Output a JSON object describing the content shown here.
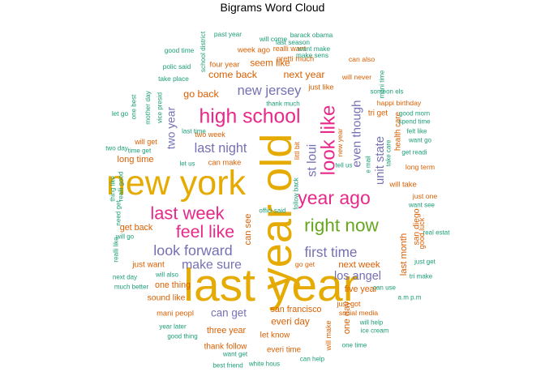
{
  "chart_data": {
    "type": "wordcloud",
    "title": "Bigrams Word Cloud",
    "colors": {
      "top": "#E6AB02",
      "high": "#E7298A",
      "mid": "#7570B3",
      "low": "#D95F02",
      "min": "#1B9E77",
      "green": "#66A61E"
    },
    "words": [
      {
        "text": "last year",
        "freq": 100,
        "color": "#E6AB02",
        "rot": 0
      },
      {
        "text": "year old",
        "freq": 98,
        "color": "#E6AB02",
        "rot": -90
      },
      {
        "text": "new york",
        "freq": 90,
        "color": "#E6AB02",
        "rot": 0
      },
      {
        "text": "high school",
        "freq": 60,
        "color": "#E7298A",
        "rot": 0
      },
      {
        "text": "look like",
        "freq": 58,
        "color": "#E7298A",
        "rot": -90
      },
      {
        "text": "year ago",
        "freq": 55,
        "color": "#E7298A",
        "rot": 0
      },
      {
        "text": "right now",
        "freq": 54,
        "color": "#66A61E",
        "rot": 0
      },
      {
        "text": "last week",
        "freq": 52,
        "color": "#E7298A",
        "rot": 0
      },
      {
        "text": "feel like",
        "freq": 50,
        "color": "#E7298A",
        "rot": 0
      },
      {
        "text": "look forward",
        "freq": 40,
        "color": "#7570B3",
        "rot": 0
      },
      {
        "text": "first time",
        "freq": 38,
        "color": "#7570B3",
        "rot": 0
      },
      {
        "text": "new jersey",
        "freq": 36,
        "color": "#7570B3",
        "rot": 0
      },
      {
        "text": "last night",
        "freq": 35,
        "color": "#7570B3",
        "rot": 0
      },
      {
        "text": "make sure",
        "freq": 34,
        "color": "#7570B3",
        "rot": 0
      },
      {
        "text": "st loui",
        "freq": 33,
        "color": "#7570B3",
        "rot": -90
      },
      {
        "text": "even though",
        "freq": 32,
        "color": "#7570B3",
        "rot": -90
      },
      {
        "text": "unit state",
        "freq": 31,
        "color": "#7570B3",
        "rot": -90
      },
      {
        "text": "los angel",
        "freq": 30,
        "color": "#7570B3",
        "rot": 0
      },
      {
        "text": "two year",
        "freq": 28,
        "color": "#7570B3",
        "rot": -90
      },
      {
        "text": "can get",
        "freq": 27,
        "color": "#7570B3",
        "rot": 0
      },
      {
        "text": "come back",
        "freq": 24,
        "color": "#D95F02",
        "rot": 0
      },
      {
        "text": "next year",
        "freq": 24,
        "color": "#D95F02",
        "rot": 0
      },
      {
        "text": "go back",
        "freq": 24,
        "color": "#D95F02",
        "rot": 0
      },
      {
        "text": "seem like",
        "freq": 22,
        "color": "#D95F02",
        "rot": 0
      },
      {
        "text": "everi day",
        "freq": 22,
        "color": "#D95F02",
        "rot": 0
      },
      {
        "text": "next week",
        "freq": 21,
        "color": "#D95F02",
        "rot": 0
      },
      {
        "text": "last month",
        "freq": 21,
        "color": "#D95F02",
        "rot": -90
      },
      {
        "text": "one day",
        "freq": 21,
        "color": "#D95F02",
        "rot": -90
      },
      {
        "text": "can see",
        "freq": 20,
        "color": "#D95F02",
        "rot": -90
      },
      {
        "text": "long time",
        "freq": 20,
        "color": "#D95F02",
        "rot": 0
      },
      {
        "text": "get back",
        "freq": 19,
        "color": "#D95F02",
        "rot": 0
      },
      {
        "text": "san francisco",
        "freq": 19,
        "color": "#D95F02",
        "rot": 0
      },
      {
        "text": "three year",
        "freq": 19,
        "color": "#D95F02",
        "rot": 0
      },
      {
        "text": "five year",
        "freq": 19,
        "color": "#D95F02",
        "rot": 0
      },
      {
        "text": "one thing",
        "freq": 19,
        "color": "#D95F02",
        "rot": 0
      },
      {
        "text": "sound like",
        "freq": 18,
        "color": "#D95F02",
        "rot": 0
      },
      {
        "text": "san diego",
        "freq": 18,
        "color": "#D95F02",
        "rot": -90
      },
      {
        "text": "just want",
        "freq": 17,
        "color": "#D95F02",
        "rot": 0
      },
      {
        "text": "thank follow",
        "freq": 17,
        "color": "#D95F02",
        "rot": 0
      },
      {
        "text": "let know",
        "freq": 17,
        "color": "#D95F02",
        "rot": 0
      },
      {
        "text": "everi time",
        "freq": 16,
        "color": "#D95F02",
        "rot": 0
      },
      {
        "text": "health care",
        "freq": 16,
        "color": "#D95F02",
        "rot": -90
      },
      {
        "text": "tri get",
        "freq": 16,
        "color": "#D95F02",
        "rot": 0
      },
      {
        "text": "mani peopl",
        "freq": 15,
        "color": "#D95F02",
        "rot": 0
      },
      {
        "text": "can make",
        "freq": 15,
        "color": "#D95F02",
        "rot": 0
      },
      {
        "text": "will take",
        "freq": 15,
        "color": "#D95F02",
        "rot": 0
      },
      {
        "text": "four year",
        "freq": 15,
        "color": "#D95F02",
        "rot": 0
      },
      {
        "text": "pretti much",
        "freq": 15,
        "color": "#D95F02",
        "rot": 0
      },
      {
        "text": "week ago",
        "freq": 15,
        "color": "#D95F02",
        "rot": 0
      },
      {
        "text": "just like",
        "freq": 15,
        "color": "#D95F02",
        "rot": 0
      },
      {
        "text": "will get",
        "freq": 14,
        "color": "#D95F02",
        "rot": 0
      },
      {
        "text": "two week",
        "freq": 14,
        "color": "#D95F02",
        "rot": 0
      },
      {
        "text": "just got",
        "freq": 14,
        "color": "#D95F02",
        "rot": 0
      },
      {
        "text": "will make",
        "freq": 14,
        "color": "#D95F02",
        "rot": -90
      },
      {
        "text": "realli want",
        "freq": 14,
        "color": "#D95F02",
        "rot": 0
      },
      {
        "text": "good luck",
        "freq": 14,
        "color": "#D95F02",
        "rot": -90
      },
      {
        "text": "long term",
        "freq": 13,
        "color": "#D95F02",
        "rot": 0
      },
      {
        "text": "just one",
        "freq": 13,
        "color": "#D95F02",
        "rot": 0
      },
      {
        "text": "can also",
        "freq": 13,
        "color": "#D95F02",
        "rot": 0
      },
      {
        "text": "will never",
        "freq": 13,
        "color": "#D95F02",
        "rot": 0
      },
      {
        "text": "new year",
        "freq": 13,
        "color": "#D95F02",
        "rot": -90
      },
      {
        "text": "littl bit",
        "freq": 13,
        "color": "#D95F02",
        "rot": -90
      },
      {
        "text": "happi birthday",
        "freq": 13,
        "color": "#D95F02",
        "rot": 0
      },
      {
        "text": "go get",
        "freq": 13,
        "color": "#D95F02",
        "rot": 0
      },
      {
        "text": "social media",
        "freq": 13,
        "color": "#D95F02",
        "rot": 0
      },
      {
        "text": "mother day",
        "freq": 12,
        "color": "#1B9E77",
        "rot": -90
      },
      {
        "text": "school district",
        "freq": 12,
        "color": "#1B9E77",
        "rot": -90
      },
      {
        "text": "past year",
        "freq": 12,
        "color": "#1B9E77",
        "rot": 0
      },
      {
        "text": "will come",
        "freq": 12,
        "color": "#1B9E77",
        "rot": 0
      },
      {
        "text": "barack obama",
        "freq": 12,
        "color": "#1B9E77",
        "rot": 0
      },
      {
        "text": "last season",
        "freq": 12,
        "color": "#1B9E77",
        "rot": 0
      },
      {
        "text": "want make",
        "freq": 12,
        "color": "#1B9E77",
        "rot": 0
      },
      {
        "text": "make sens",
        "freq": 12,
        "color": "#1B9E77",
        "rot": 0
      },
      {
        "text": "good time",
        "freq": 12,
        "color": "#1B9E77",
        "rot": 0
      },
      {
        "text": "polic said",
        "freq": 12,
        "color": "#1B9E77",
        "rot": 0
      },
      {
        "text": "take place",
        "freq": 12,
        "color": "#1B9E77",
        "rot": 0
      },
      {
        "text": "let go",
        "freq": 12,
        "color": "#1B9E77",
        "rot": 0
      },
      {
        "text": "one best",
        "freq": 11,
        "color": "#1B9E77",
        "rot": -90
      },
      {
        "text": "vice presid",
        "freq": 11,
        "color": "#1B9E77",
        "rot": -90
      },
      {
        "text": "mani time",
        "freq": 11,
        "color": "#1B9E77",
        "rot": -90
      },
      {
        "text": "someon els",
        "freq": 11,
        "color": "#1B9E77",
        "rot": 0
      },
      {
        "text": "good morn",
        "freq": 11,
        "color": "#1B9E77",
        "rot": 0
      },
      {
        "text": "spend time",
        "freq": 11,
        "color": "#1B9E77",
        "rot": 0
      },
      {
        "text": "felt like",
        "freq": 11,
        "color": "#1B9E77",
        "rot": 0
      },
      {
        "text": "want go",
        "freq": 11,
        "color": "#1B9E77",
        "rot": 0
      },
      {
        "text": "get readi",
        "freq": 11,
        "color": "#1B9E77",
        "rot": 0
      },
      {
        "text": "thank much",
        "freq": 11,
        "color": "#1B9E77",
        "rot": 0
      },
      {
        "text": "last time",
        "freq": 11,
        "color": "#1B9E77",
        "rot": 0
      },
      {
        "text": "two day",
        "freq": 11,
        "color": "#1B9E77",
        "rot": 0
      },
      {
        "text": "time get",
        "freq": 11,
        "color": "#1B9E77",
        "rot": 0
      },
      {
        "text": "let us",
        "freq": 11,
        "color": "#1B9E77",
        "rot": 0
      },
      {
        "text": "tell us",
        "freq": 11,
        "color": "#1B9E77",
        "rot": 0
      },
      {
        "text": "e mail",
        "freq": 11,
        "color": "#1B9E77",
        "rot": -90
      },
      {
        "text": "take care",
        "freq": 11,
        "color": "#1B9E77",
        "rot": -90
      },
      {
        "text": "thing like",
        "freq": 11,
        "color": "#1B9E77",
        "rot": -90
      },
      {
        "text": "realli good",
        "freq": 11,
        "color": "#1B9E77",
        "rot": -90
      },
      {
        "text": "follow back",
        "freq": 11,
        "color": "#1B9E77",
        "rot": -90
      },
      {
        "text": "need get",
        "freq": 11,
        "color": "#1B9E77",
        "rot": -90
      },
      {
        "text": "will go",
        "freq": 11,
        "color": "#1B9E77",
        "rot": 0
      },
      {
        "text": "want see",
        "freq": 11,
        "color": "#1B9E77",
        "rot": 0
      },
      {
        "text": "real estat",
        "freq": 11,
        "color": "#1B9E77",
        "rot": 0
      },
      {
        "text": "realli like",
        "freq": 11,
        "color": "#1B9E77",
        "rot": -90
      },
      {
        "text": "just get",
        "freq": 11,
        "color": "#1B9E77",
        "rot": 0
      },
      {
        "text": "will also",
        "freq": 11,
        "color": "#1B9E77",
        "rot": 0
      },
      {
        "text": "next day",
        "freq": 11,
        "color": "#1B9E77",
        "rot": 0
      },
      {
        "text": "much better",
        "freq": 11,
        "color": "#1B9E77",
        "rot": 0
      },
      {
        "text": "tri make",
        "freq": 11,
        "color": "#1B9E77",
        "rot": 0
      },
      {
        "text": "can use",
        "freq": 11,
        "color": "#1B9E77",
        "rot": 0
      },
      {
        "text": "a.m p.m",
        "freq": 11,
        "color": "#1B9E77",
        "rot": 0
      },
      {
        "text": "will help",
        "freq": 11,
        "color": "#1B9E77",
        "rot": 0
      },
      {
        "text": "ice cream",
        "freq": 11,
        "color": "#1B9E77",
        "rot": 0
      },
      {
        "text": "year later",
        "freq": 11,
        "color": "#1B9E77",
        "rot": 0
      },
      {
        "text": "good thing",
        "freq": 11,
        "color": "#1B9E77",
        "rot": 0
      },
      {
        "text": "one time",
        "freq": 11,
        "color": "#1B9E77",
        "rot": 0
      },
      {
        "text": "want get",
        "freq": 11,
        "color": "#1B9E77",
        "rot": 0
      },
      {
        "text": "can help",
        "freq": 11,
        "color": "#1B9E77",
        "rot": 0
      },
      {
        "text": "best friend",
        "freq": 11,
        "color": "#1B9E77",
        "rot": 0
      },
      {
        "text": "white hous",
        "freq": 11,
        "color": "#1B9E77",
        "rot": 0
      },
      {
        "text": "offici said",
        "freq": 11,
        "color": "#1B9E77",
        "rot": 0
      }
    ]
  }
}
